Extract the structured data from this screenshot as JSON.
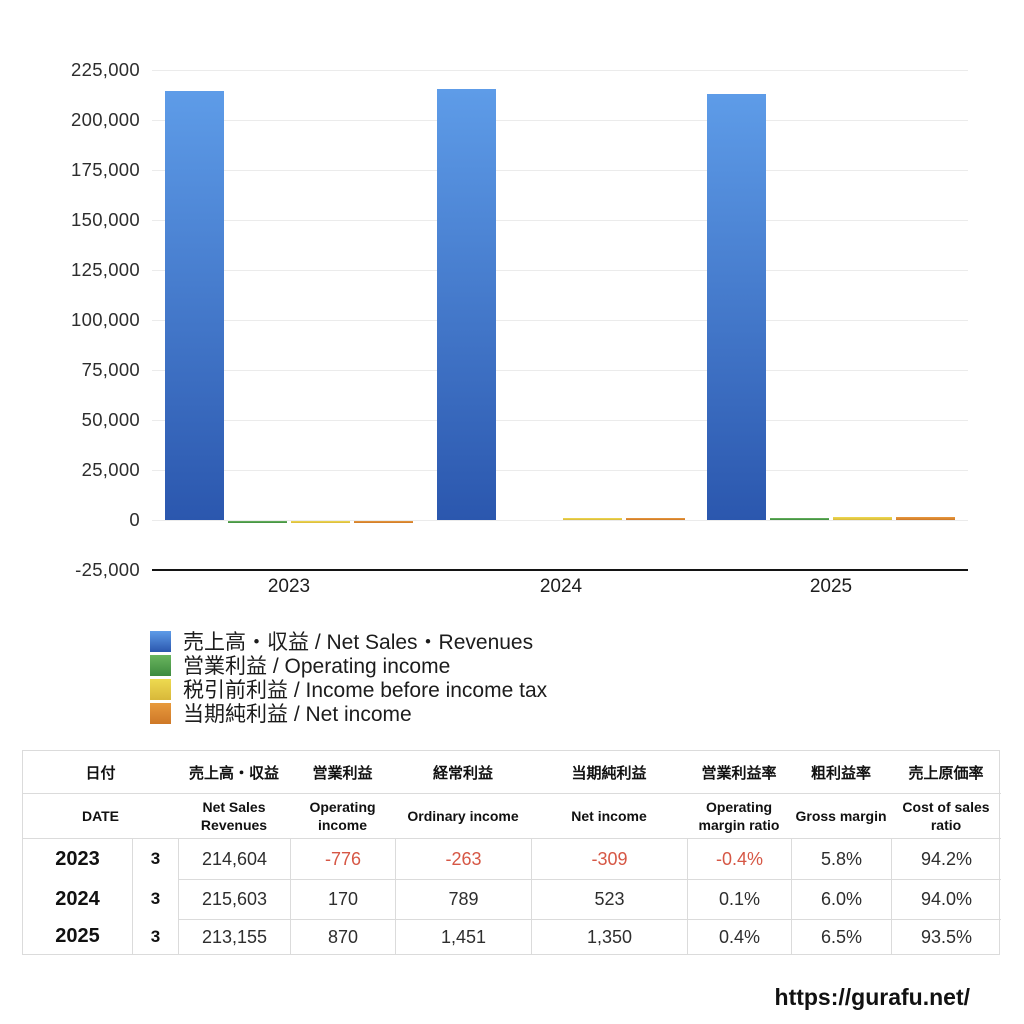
{
  "chart_data": {
    "type": "bar",
    "categories": [
      "2023",
      "2024",
      "2025"
    ],
    "series": [
      {
        "name": "売上高・収益 / Net Sales・Revenues",
        "color_top": "#5e9ce8",
        "color_bottom": "#2b57ae",
        "values": [
          214604,
          215603,
          213155
        ]
      },
      {
        "name": "営業利益 / Operating income",
        "color_top": "#69b55f",
        "color_bottom": "#3e8b3e",
        "values": [
          -776,
          170,
          870
        ]
      },
      {
        "name": "税引前利益 / Income before income tax",
        "color_top": "#eeda50",
        "color_bottom": "#d8b83a",
        "values": [
          -263,
          789,
          1451
        ]
      },
      {
        "name": "当期純利益 / Net income",
        "color_top": "#e89a3d",
        "color_bottom": "#ce7827",
        "values": [
          -309,
          523,
          1350
        ]
      }
    ],
    "title": "",
    "xlabel": "",
    "ylabel": "",
    "ylim": [
      -25000,
      225000
    ],
    "yticks": [
      225000,
      200000,
      175000,
      150000,
      125000,
      100000,
      75000,
      50000,
      25000,
      0,
      -25000
    ],
    "ytick_labels": [
      "225,000",
      "200,000",
      "175,000",
      "150,000",
      "125,000",
      "100,000",
      "75,000",
      "50,000",
      "25,000",
      "0",
      "-25,000"
    ],
    "grid": true,
    "legend_position": "bottom-left"
  },
  "table": {
    "header_jp": [
      "日付",
      "売上高・収益",
      "営業利益",
      "経常利益",
      "当期純利益",
      "営業利益率",
      "粗利益率",
      "売上原価率"
    ],
    "header_en": [
      "DATE",
      "Net Sales Revenues",
      "Operating income",
      "Ordinary income",
      "Net income",
      "Operating margin ratio",
      "Gross margin",
      "Cost of sales ratio"
    ],
    "rows": [
      {
        "year": "2023",
        "month": "3",
        "values": [
          "214,604",
          "-776",
          "-263",
          "-309",
          "-0.4%",
          "5.8%",
          "94.2%"
        ]
      },
      {
        "year": "2024",
        "month": "3",
        "values": [
          "215,603",
          "170",
          "789",
          "523",
          "0.1%",
          "6.0%",
          "94.0%"
        ]
      },
      {
        "year": "2025",
        "month": "3",
        "values": [
          "213,155",
          "870",
          "1,451",
          "1,350",
          "0.4%",
          "6.5%",
          "93.5%"
        ]
      }
    ],
    "negative_color": "#d65745"
  },
  "footer": {
    "url": "https://gurafu.net/"
  }
}
